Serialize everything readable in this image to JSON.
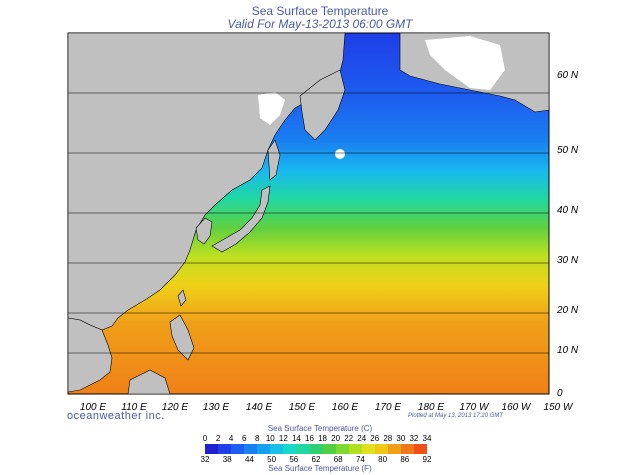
{
  "header": {
    "title": "Sea Surface Temperature",
    "subtitle": "Valid For May-13-2013 06:00 GMT"
  },
  "map": {
    "lon_labels": [
      "100 E",
      "110 E",
      "120 E",
      "130 E",
      "140 E",
      "150 E",
      "160 E",
      "170 E",
      "180 E",
      "170 W",
      "160 W",
      "150 W"
    ],
    "lat_labels": [
      "0",
      "10 N",
      "20 N",
      "30 N",
      "40 N",
      "50 N",
      "60 N"
    ],
    "land_color": "#c0c0c0",
    "coast_color": "#000000"
  },
  "footer": {
    "brand": "oceanweather inc.",
    "plotted": "Plotted at May 13, 2013 17:20 GMT"
  },
  "scale": {
    "celsius_title": "Sea Surface Temperature (C)",
    "celsius_ticks": [
      "0",
      "2",
      "4",
      "6",
      "8",
      "10",
      "12",
      "14",
      "16",
      "18",
      "20",
      "22",
      "24",
      "26",
      "28",
      "30",
      "32",
      "34"
    ],
    "fahrenheit_title": "Sea Surface Temperature (F)",
    "fahrenheit_ticks": [
      "32",
      "38",
      "44",
      "50",
      "56",
      "62",
      "68",
      "74",
      "80",
      "86",
      "92"
    ],
    "colors": [
      "#2020d0",
      "#1e3ee8",
      "#1d5ef0",
      "#1a80f0",
      "#18a0f0",
      "#18c0e8",
      "#18d8c8",
      "#20d8a0",
      "#30d070",
      "#50d040",
      "#80d830",
      "#b0e020",
      "#e0e020",
      "#f0c818",
      "#f0a018",
      "#f07818",
      "#f05018"
    ]
  }
}
